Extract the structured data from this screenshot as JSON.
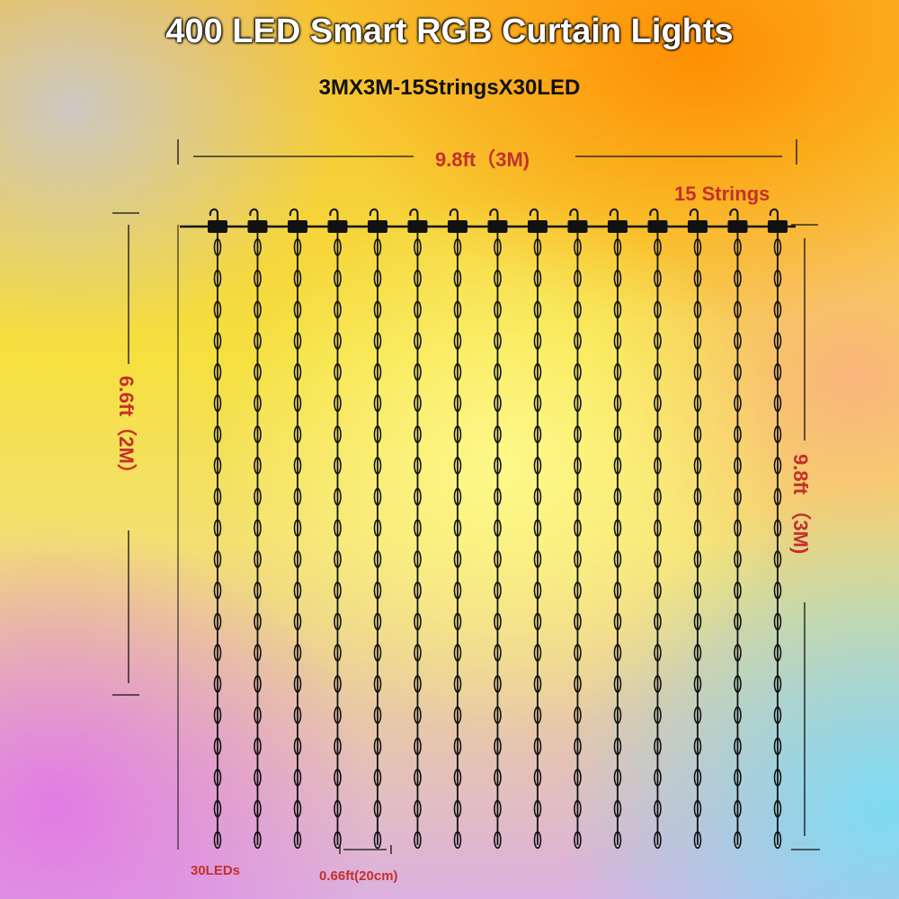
{
  "title": "400 LED Smart RGB Curtain Lights",
  "subtitle": "3MX3M-15StringsX30LED",
  "dimensions": {
    "width": "9.8ft（3M)",
    "strings": "15 Strings",
    "left_height": "6.6ft（2M）",
    "right_height": "9.8ft （3M)",
    "leds_per_string": "30LEDs",
    "string_spacing": "0.66ft(20cm)"
  },
  "string_count": 15
}
